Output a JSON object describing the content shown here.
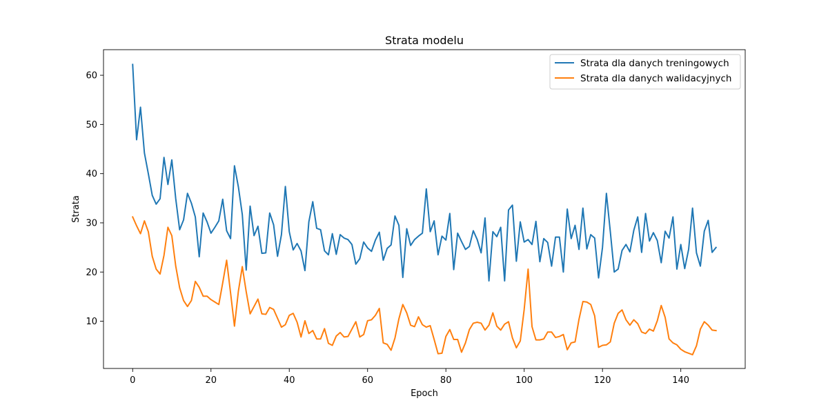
{
  "chart_data": {
    "type": "line",
    "title": "Strata modelu",
    "xlabel": "Epoch",
    "ylabel": "Strata",
    "xlim": [
      -7.45,
      156.45
    ],
    "ylim": [
      0.4,
      65.2
    ],
    "x_ticks": [
      0,
      20,
      40,
      60,
      80,
      100,
      120,
      140
    ],
    "y_ticks": [
      10,
      20,
      30,
      40,
      50,
      60
    ],
    "grid": false,
    "legend_position": "top-right",
    "series": [
      {
        "name": "Strata dla danych treningowych",
        "color": "#1f77b4",
        "values": [
          62.2,
          46.9,
          53.5,
          44.2,
          40.0,
          35.6,
          33.8,
          34.9,
          43.3,
          37.8,
          42.8,
          34.9,
          28.6,
          30.6,
          36.0,
          34.0,
          31.2,
          23.1,
          32.0,
          30.2,
          27.9,
          29.1,
          30.4,
          34.8,
          28.4,
          26.8,
          41.6,
          37.3,
          31.7,
          20.4,
          33.4,
          27.4,
          29.3,
          23.8,
          23.9,
          32.0,
          29.6,
          23.2,
          27.6,
          37.4,
          28.2,
          24.5,
          25.8,
          24.3,
          20.3,
          30.2,
          34.3,
          28.9,
          28.6,
          24.3,
          23.5,
          27.8,
          23.6,
          27.6,
          26.9,
          26.6,
          25.6,
          21.6,
          22.7,
          26.1,
          24.9,
          24.2,
          26.5,
          28.1,
          22.4,
          24.8,
          25.5,
          31.4,
          29.5,
          18.9,
          28.8,
          25.4,
          26.6,
          27.3,
          27.9,
          36.9,
          28.2,
          30.4,
          23.5,
          27.3,
          26.5,
          31.9,
          20.5,
          27.9,
          26.2,
          24.6,
          25.2,
          28.4,
          26.6,
          23.9,
          31.0,
          18.2,
          28.2,
          27.2,
          29.1,
          18.2,
          32.6,
          33.6,
          22.2,
          30.2,
          26.1,
          26.6,
          25.6,
          30.3,
          22.1,
          26.8,
          26.0,
          21.2,
          27.1,
          27.1,
          20.0,
          32.8,
          26.8,
          29.5,
          24.6,
          33.0,
          24.7,
          27.6,
          26.9,
          18.8,
          25.0,
          36.0,
          28.2,
          20.0,
          20.6,
          24.4,
          25.6,
          24.1,
          28.5,
          31.2,
          24.0,
          31.9,
          26.3,
          28.0,
          26.4,
          21.9,
          28.3,
          26.9,
          31.2,
          20.6,
          25.6,
          20.7,
          24.6,
          33.0,
          23.9,
          21.2,
          28.3,
          30.5,
          24.0,
          25.0
        ]
      },
      {
        "name": "Strata dla danych walidacyjnych",
        "color": "#ff7f0e",
        "values": [
          31.2,
          29.4,
          27.8,
          30.4,
          28.2,
          23.2,
          20.6,
          19.6,
          23.4,
          29.1,
          27.4,
          21.2,
          16.8,
          14.2,
          13.0,
          14.2,
          18.1,
          16.9,
          15.1,
          15.1,
          14.4,
          13.9,
          13.4,
          17.8,
          22.4,
          15.8,
          9.0,
          16.1,
          21.1,
          16.0,
          11.5,
          13.0,
          14.5,
          11.5,
          11.4,
          12.8,
          12.4,
          10.6,
          8.8,
          9.3,
          11.2,
          11.6,
          9.8,
          6.8,
          10.1,
          7.5,
          8.1,
          6.4,
          6.4,
          8.5,
          5.5,
          5.1,
          7.0,
          7.7,
          6.8,
          6.9,
          8.4,
          9.9,
          6.8,
          7.3,
          10.1,
          10.3,
          11.2,
          12.6,
          5.6,
          5.3,
          4.1,
          6.6,
          10.5,
          13.4,
          11.7,
          9.2,
          8.9,
          10.9,
          9.3,
          8.8,
          9.1,
          6.3,
          3.4,
          3.5,
          6.9,
          8.3,
          6.3,
          6.3,
          3.7,
          5.6,
          8.3,
          9.6,
          9.8,
          9.6,
          8.2,
          9.2,
          11.7,
          9.0,
          8.2,
          9.4,
          9.9,
          6.6,
          4.6,
          6.0,
          12.4,
          20.6,
          8.9,
          6.2,
          6.2,
          6.4,
          7.8,
          7.8,
          6.7,
          6.9,
          7.3,
          4.2,
          5.6,
          5.8,
          10.4,
          14.0,
          13.9,
          13.4,
          11.1,
          4.7,
          5.1,
          5.2,
          5.8,
          9.6,
          11.6,
          12.3,
          10.3,
          9.2,
          10.3,
          9.5,
          7.8,
          7.5,
          8.4,
          8.0,
          10.1,
          13.2,
          10.8,
          6.4,
          5.6,
          5.2,
          4.3,
          3.8,
          3.5,
          3.2,
          5.0,
          8.4,
          9.9,
          9.2,
          8.2,
          8.1
        ]
      }
    ]
  }
}
